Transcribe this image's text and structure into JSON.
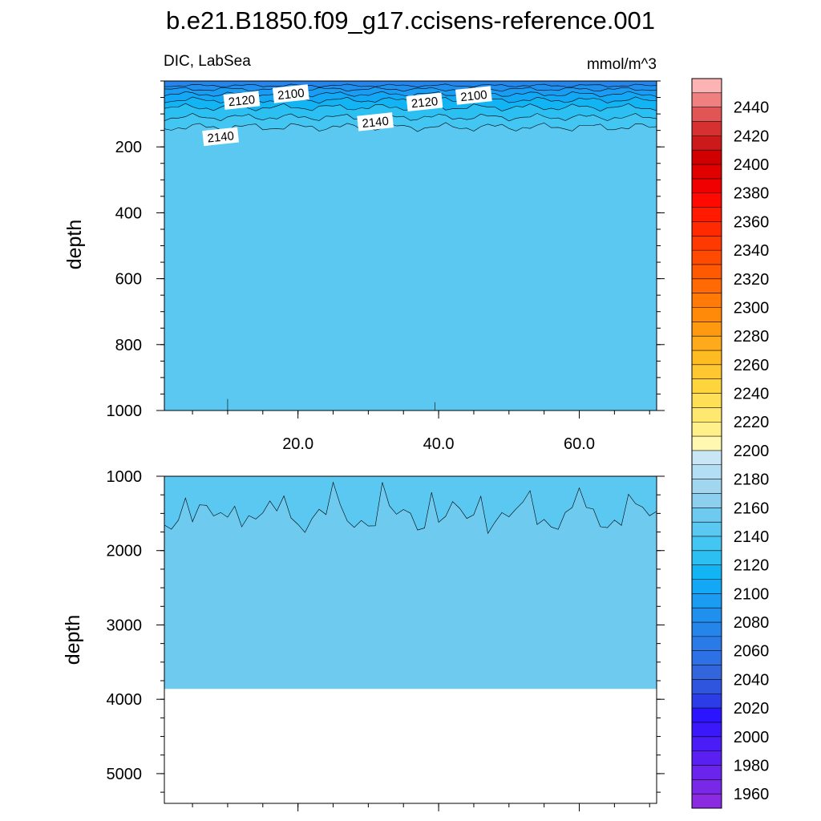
{
  "title": "b.e21.B1850.f09_g17.ccisens-reference.001",
  "chart_data": {
    "type": "heatmap",
    "variable_label": "DIC, LabSea",
    "units_label": "mmol/m^3",
    "x_tick_labels": [
      "20.0",
      "40.0",
      "60.0"
    ],
    "x_ticks": [
      20,
      40,
      60
    ],
    "xlim": [
      1,
      71
    ],
    "top_panel": {
      "ylabel": "depth",
      "ylim": [
        0,
        1000
      ],
      "y_ticks": [
        200,
        400,
        600,
        800,
        1000
      ],
      "y_tick_labels": [
        "200",
        "400",
        "600",
        "800",
        "1000"
      ],
      "contour_labels": [
        {
          "text": "2120",
          "x": 12,
          "y": 60
        },
        {
          "text": "2100",
          "x": 19,
          "y": 40
        },
        {
          "text": "2120",
          "x": 38,
          "y": 65
        },
        {
          "text": "2100",
          "x": 45,
          "y": 45
        },
        {
          "text": "2140",
          "x": 31,
          "y": 125
        },
        {
          "text": "2140",
          "x": 9,
          "y": 170
        }
      ]
    },
    "bottom_panel": {
      "ylabel": "depth",
      "ylim": [
        1000,
        5400
      ],
      "y_ticks": [
        1000,
        2000,
        3000,
        4000,
        5000
      ],
      "y_tick_labels": [
        "1000",
        "2000",
        "3000",
        "4000",
        "5000"
      ],
      "seafloor_depth": 3860
    },
    "colorbar": {
      "levels": [
        1950,
        1960,
        1970,
        1980,
        1990,
        2000,
        2010,
        2020,
        2030,
        2040,
        2050,
        2060,
        2070,
        2080,
        2090,
        2100,
        2110,
        2120,
        2130,
        2140,
        2150,
        2160,
        2170,
        2180,
        2190,
        2200,
        2210,
        2220,
        2230,
        2240,
        2250,
        2260,
        2270,
        2280,
        2290,
        2300,
        2310,
        2320,
        2330,
        2340,
        2350,
        2360,
        2370,
        2380,
        2390,
        2400,
        2410,
        2420,
        2430,
        2440,
        2450
      ],
      "label_values": [
        "2440",
        "2420",
        "2400",
        "2380",
        "2360",
        "2340",
        "2320",
        "2300",
        "2280",
        "2260",
        "2240",
        "2220",
        "2200",
        "2180",
        "2160",
        "2140",
        "2120",
        "2100",
        "2080",
        "2060",
        "2040",
        "2020",
        "2000",
        "1980",
        "1960"
      ],
      "colors": [
        "#8a2be2",
        "#7a28e8",
        "#6a24ee",
        "#5a20f2",
        "#4a1cf6",
        "#3a18fa",
        "#2b14ff",
        "#2c3ce6",
        "#2f55de",
        "#3366dd",
        "#2e70e6",
        "#2a7ae8",
        "#2585ea",
        "#1f90ee",
        "#199cf2",
        "#12a8f6",
        "#12b4f4",
        "#2bbff2",
        "#43c6f2",
        "#5bc8f2",
        "#6fcaf0",
        "#8ccfee",
        "#a2d6ef",
        "#b4def3",
        "#c8e6f6",
        "#fff8b0",
        "#fff08a",
        "#ffe870",
        "#ffdf55",
        "#ffd53e",
        "#ffc830",
        "#ffbc22",
        "#ffaa1a",
        "#ff9a10",
        "#ff8a0a",
        "#ff7a06",
        "#ff6a04",
        "#ff5a02",
        "#ff4a00",
        "#ff3a00",
        "#ff2a00",
        "#ff1a00",
        "#ff0a00",
        "#f00000",
        "#e00000",
        "#d00000",
        "#cc1a1a",
        "#d73030",
        "#e25555",
        "#f07f7f",
        "#fbb3b3"
      ]
    }
  }
}
